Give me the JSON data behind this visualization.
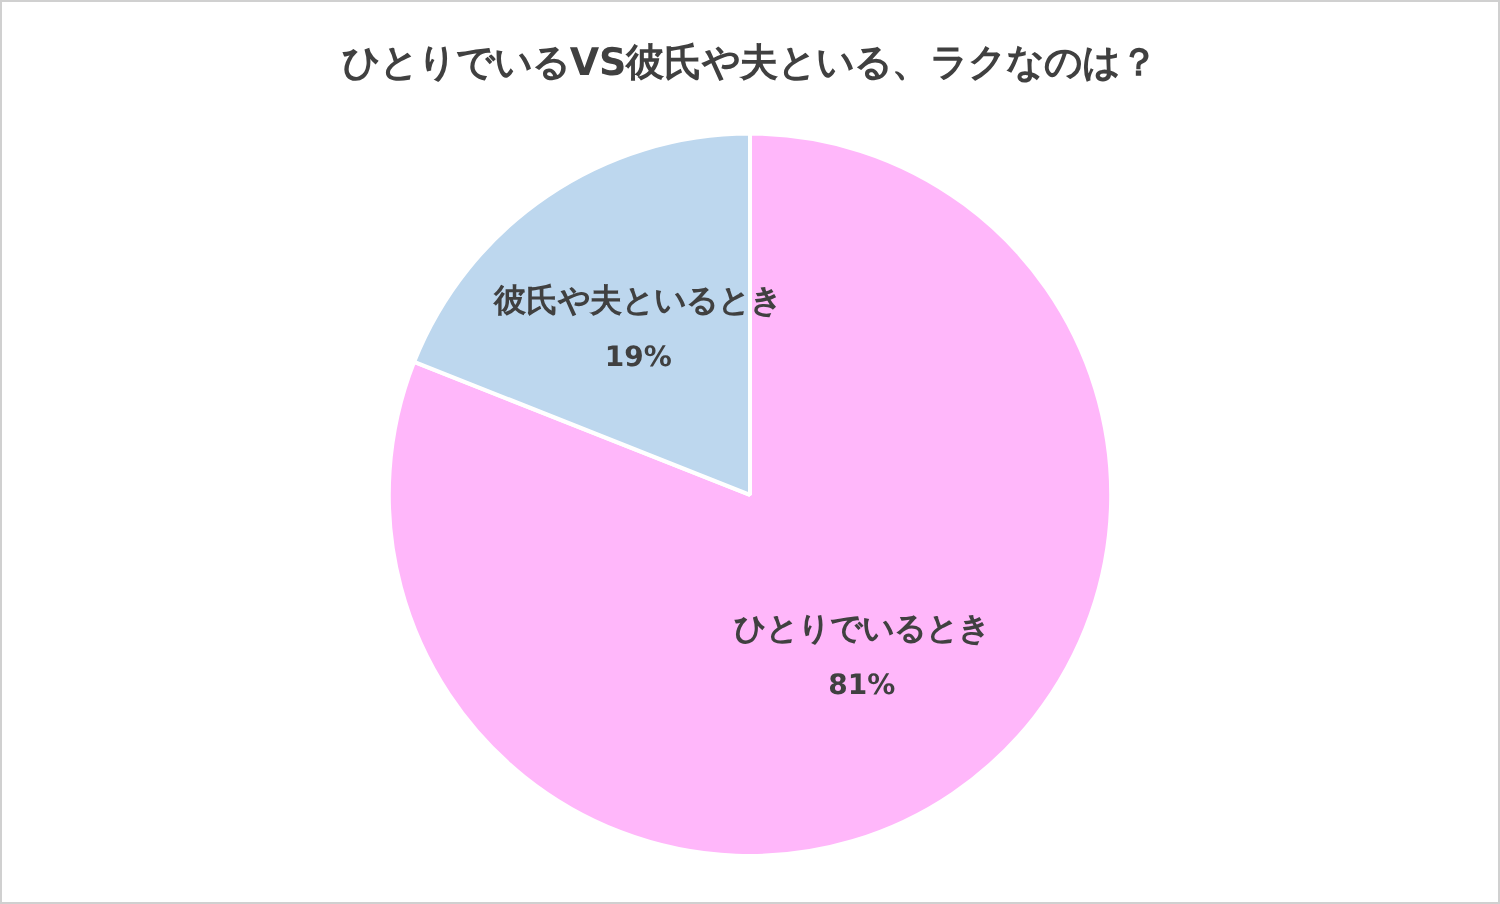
{
  "chart_data": {
    "type": "pie",
    "title": "ひとりでいるVS彼氏や夫といる、ラクなのは？",
    "categories": [
      "ひとりでいるとき",
      "彼氏や夫といるとき"
    ],
    "values": [
      81,
      19
    ],
    "colors": [
      "#ffb7fa",
      "#bdd7ee"
    ],
    "value_labels": [
      "81%",
      "19%"
    ],
    "legend": false
  }
}
